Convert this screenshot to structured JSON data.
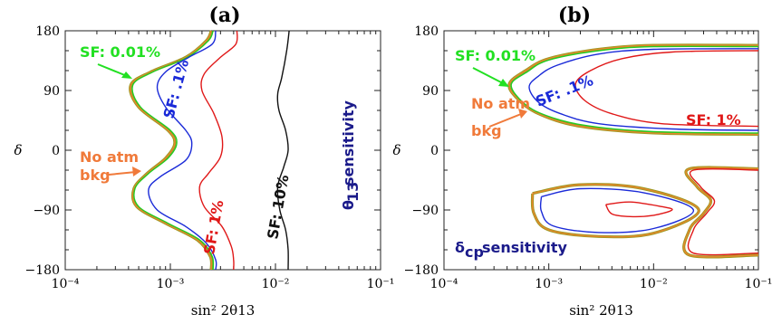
{
  "chart_data": [
    {
      "type": "line",
      "title": "(a)",
      "xlabel": "sin² 2θ13",
      "ylabel": "δ",
      "xscale": "log",
      "xlim": [
        0.0001,
        0.1
      ],
      "ylim": [
        -180,
        180
      ],
      "x_tick_labels": [
        "10⁻⁴",
        "10⁻³",
        "10⁻²",
        "10⁻¹"
      ],
      "y_tick_labels": [
        "180",
        "90",
        "0",
        "−90",
        "−180"
      ],
      "series": [
        {
          "name": "No atm bkg",
          "color": "#e8862c",
          "style": "double-olive",
          "points": [
            [
              0.00245,
              180
            ],
            [
              0.0022,
              165
            ],
            [
              0.0014,
              140
            ],
            [
              0.00065,
              118
            ],
            [
              0.00042,
              98
            ],
            [
              0.0005,
              65
            ],
            [
              0.00095,
              30
            ],
            [
              0.0011,
              10
            ],
            [
              0.0009,
              -12
            ],
            [
              0.0006,
              -35
            ],
            [
              0.00045,
              -58
            ],
            [
              0.00048,
              -85
            ],
            [
              0.0009,
              -110
            ],
            [
              0.0018,
              -135
            ],
            [
              0.0024,
              -160
            ],
            [
              0.00245,
              -180
            ]
          ]
        },
        {
          "name": "SF: 0.01%",
          "color": "#22cc22",
          "points": [
            [
              0.00255,
              180
            ],
            [
              0.0023,
              165
            ],
            [
              0.00145,
              140
            ],
            [
              0.00068,
              118
            ],
            [
              0.00044,
              98
            ],
            [
              0.00052,
              65
            ],
            [
              0.001,
              30
            ],
            [
              0.00115,
              10
            ],
            [
              0.00095,
              -12
            ],
            [
              0.00062,
              -35
            ],
            [
              0.00046,
              -58
            ],
            [
              0.0005,
              -85
            ],
            [
              0.00095,
              -110
            ],
            [
              0.0019,
              -135
            ],
            [
              0.0025,
              -160
            ],
            [
              0.00255,
              -180
            ]
          ]
        },
        {
          "name": "SF: .1%",
          "color": "#1a2ad8",
          "points": [
            [
              0.0027,
              180
            ],
            [
              0.0025,
              160
            ],
            [
              0.0015,
              140
            ],
            [
              0.0009,
              118
            ],
            [
              0.00075,
              95
            ],
            [
              0.0009,
              65
            ],
            [
              0.0014,
              30
            ],
            [
              0.0016,
              10
            ],
            [
              0.0014,
              -15
            ],
            [
              0.0008,
              -40
            ],
            [
              0.00062,
              -60
            ],
            [
              0.00075,
              -90
            ],
            [
              0.0014,
              -115
            ],
            [
              0.0022,
              -140
            ],
            [
              0.0027,
              -165
            ],
            [
              0.0027,
              -180
            ]
          ]
        },
        {
          "name": "SF: 1%",
          "color": "#e01818",
          "points": [
            [
              0.0043,
              180
            ],
            [
              0.0042,
              160
            ],
            [
              0.003,
              140
            ],
            [
              0.0021,
              115
            ],
            [
              0.002,
              90
            ],
            [
              0.0026,
              55
            ],
            [
              0.0031,
              20
            ],
            [
              0.003,
              -10
            ],
            [
              0.0023,
              -35
            ],
            [
              0.0019,
              -55
            ],
            [
              0.0021,
              -85
            ],
            [
              0.0031,
              -115
            ],
            [
              0.0038,
              -145
            ],
            [
              0.004,
              -165
            ],
            [
              0.004,
              -180
            ]
          ]
        },
        {
          "name": "SF: 10%",
          "color": "#111111",
          "points": [
            [
              0.0135,
              180
            ],
            [
              0.0128,
              150
            ],
            [
              0.0115,
              110
            ],
            [
              0.0105,
              85
            ],
            [
              0.0108,
              60
            ],
            [
              0.0125,
              30
            ],
            [
              0.0132,
              0
            ],
            [
              0.012,
              -25
            ],
            [
              0.0105,
              -55
            ],
            [
              0.011,
              -90
            ],
            [
              0.0125,
              -120
            ],
            [
              0.0132,
              -150
            ],
            [
              0.0132,
              -180
            ]
          ]
        }
      ],
      "annotations": [
        "SF: 0.01%",
        "SF: .1%",
        "No atm",
        "bkg",
        "SF: 1%",
        "SF: 10%",
        "θ13 sensitivity"
      ]
    },
    {
      "type": "line",
      "title": "(b)",
      "xlabel": "sin² 2θ13",
      "ylabel": "δ",
      "xscale": "log",
      "xlim": [
        0.0001,
        0.1
      ],
      "ylim": [
        -180,
        180
      ],
      "x_tick_labels": [
        "10⁻⁴",
        "10⁻³",
        "10⁻²",
        "10⁻¹"
      ],
      "y_tick_labels": [
        "180",
        "90",
        "0",
        "−90",
        "−180"
      ],
      "series": [
        {
          "name": "No atm bkg",
          "color": "#e8862c",
          "style": "double-olive",
          "points": [
            [
              0.1,
              158
            ],
            [
              0.01,
              158
            ],
            [
              0.003,
              152
            ],
            [
              0.001,
              138
            ],
            [
              0.0006,
              120
            ],
            [
              0.00042,
              100
            ],
            [
              0.0005,
              78
            ],
            [
              0.0008,
              55
            ],
            [
              0.002,
              36
            ],
            [
              0.01,
              26
            ],
            [
              0.1,
              24
            ]
          ]
        },
        {
          "name": "SF: 0.01%",
          "color": "#22cc22",
          "points": [
            [
              0.1,
              156
            ],
            [
              0.01,
              156
            ],
            [
              0.003,
              150
            ],
            [
              0.001,
              136
            ],
            [
              0.00062,
              118
            ],
            [
              0.00044,
              100
            ],
            [
              0.00052,
              78
            ],
            [
              0.00082,
              56
            ],
            [
              0.0021,
              38
            ],
            [
              0.01,
              28
            ],
            [
              0.1,
              26
            ]
          ]
        },
        {
          "name": "SF: .1%",
          "color": "#1a2ad8",
          "points": [
            [
              0.1,
              153
            ],
            [
              0.01,
              152
            ],
            [
              0.003,
              145
            ],
            [
              0.0012,
              128
            ],
            [
              0.0008,
              112
            ],
            [
              0.00065,
              95
            ],
            [
              0.0008,
              72
            ],
            [
              0.0013,
              55
            ],
            [
              0.003,
              40
            ],
            [
              0.015,
              32
            ],
            [
              0.1,
              30
            ]
          ]
        },
        {
          "name": "SF: 1%",
          "color": "#e01818",
          "points": [
            [
              0.1,
              150
            ],
            [
              0.015,
              148
            ],
            [
              0.005,
              138
            ],
            [
              0.0025,
              120
            ],
            [
              0.0018,
              100
            ],
            [
              0.0022,
              75
            ],
            [
              0.004,
              55
            ],
            [
              0.012,
              40
            ],
            [
              0.1,
              36
            ]
          ]
        }
      ],
      "islands": [
        {
          "color": "#e8862c",
          "points": [
            [
              0.0007,
              -65
            ],
            [
              0.002,
              -52
            ],
            [
              0.008,
              -58
            ],
            [
              0.027,
              -90
            ],
            [
              0.01,
              -125
            ],
            [
              0.003,
              -130
            ],
            [
              0.001,
              -120
            ],
            [
              0.00072,
              -95
            ],
            [
              0.0007,
              -65
            ]
          ]
        },
        {
          "color": "#1a2ad8",
          "points": [
            [
              0.00085,
              -70
            ],
            [
              0.002,
              -58
            ],
            [
              0.008,
              -64
            ],
            [
              0.024,
              -90
            ],
            [
              0.01,
              -118
            ],
            [
              0.003,
              -124
            ],
            [
              0.0011,
              -114
            ],
            [
              0.00085,
              -92
            ],
            [
              0.00085,
              -70
            ]
          ]
        },
        {
          "color": "#e01818",
          "points": [
            [
              0.0035,
              -82
            ],
            [
              0.006,
              -78
            ],
            [
              0.012,
              -85
            ],
            [
              0.015,
              -90
            ],
            [
              0.01,
              -98
            ],
            [
              0.006,
              -100
            ],
            [
              0.004,
              -96
            ],
            [
              0.0035,
              -82
            ]
          ]
        },
        {
          "color": "#e8862c",
          "points": [
            [
              0.1,
              -28
            ],
            [
              0.022,
              -28
            ],
            [
              0.026,
              -55
            ],
            [
              0.035,
              -75
            ],
            [
              0.03,
              -95
            ],
            [
              0.022,
              -120
            ],
            [
              0.022,
              -158
            ],
            [
              0.1,
              -158
            ]
          ]
        },
        {
          "color": "#e01818",
          "points": [
            [
              0.1,
              -30
            ],
            [
              0.024,
              -30
            ],
            [
              0.028,
              -55
            ],
            [
              0.038,
              -76
            ],
            [
              0.032,
              -95
            ],
            [
              0.024,
              -120
            ],
            [
              0.024,
              -155
            ],
            [
              0.1,
              -155
            ]
          ]
        }
      ],
      "annotations": [
        "SF: 0.01%",
        "SF: .1%",
        "No atm",
        "bkg",
        "SF: 1%",
        "δcp sensitivity"
      ]
    }
  ]
}
